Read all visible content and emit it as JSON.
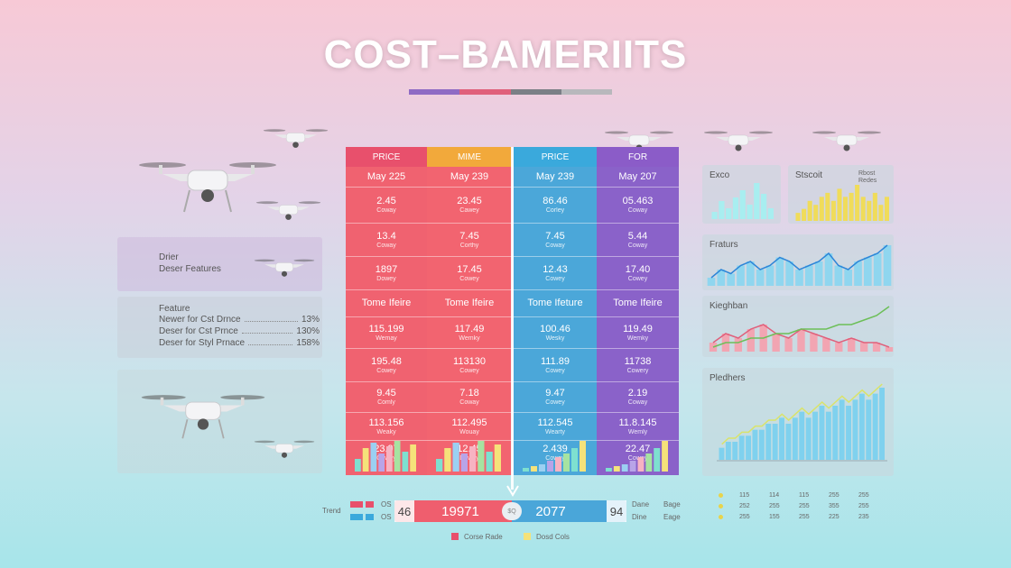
{
  "title": "COST–BAMERIITS",
  "title_bar_colors": [
    "#8f6bc4",
    "#e0607b",
    "#7b7f86",
    "#b8b8bc"
  ],
  "left_panels": {
    "p1": {
      "line1": "Drier",
      "line2": "Deser Features"
    },
    "p2": {
      "title": "Feature",
      "rows": [
        {
          "label": "Newer for Cst Drnce",
          "value": "13%"
        },
        {
          "label": "Deser for Cst Prnce",
          "value": "130%"
        },
        {
          "label": "Deser for Styl Prnace",
          "value": "158%"
        }
      ]
    }
  },
  "table": {
    "columns": [
      {
        "header": "PRICE",
        "header_color": "#e8506c",
        "body_color": "#f06270",
        "cells": [
          {
            "big": "May 225",
            "small": ""
          },
          {
            "big": "2.45",
            "small": "Coway"
          },
          {
            "big": "13.4",
            "small": "Coway"
          },
          {
            "big": "1897",
            "small": "Dowey"
          },
          {
            "big": "Tome Ifeire",
            "small": ""
          },
          {
            "big": "115.199",
            "small": "Wemay"
          },
          {
            "big": "195.48",
            "small": "Cowey"
          },
          {
            "big": "9.45",
            "small": "Comly"
          },
          {
            "big": "113.156",
            "small": "Weaky"
          },
          {
            "big": "23.97",
            "small": "Cowey"
          }
        ]
      },
      {
        "header": "MIME",
        "header_color": "#f2a93b",
        "body_color": "#f26470",
        "cells": [
          {
            "big": "May 239",
            "small": ""
          },
          {
            "big": "23.45",
            "small": "Cawey"
          },
          {
            "big": "7.45",
            "small": "Corthy"
          },
          {
            "big": "17.45",
            "small": "Cowey"
          },
          {
            "big": "Tome Ifeire",
            "small": ""
          },
          {
            "big": "117.49",
            "small": "Wemky"
          },
          {
            "big": "113130",
            "small": "Cowey"
          },
          {
            "big": "7.18",
            "small": "Coway"
          },
          {
            "big": "112.495",
            "small": "Wouay"
          },
          {
            "big": "12.45",
            "small": "Dowey"
          }
        ]
      },
      {
        "header": "PRICE",
        "header_color": "#3aa9dc",
        "body_color": "#4ba7d9",
        "cells": [
          {
            "big": "May 239",
            "small": ""
          },
          {
            "big": "86.46",
            "small": "Corley"
          },
          {
            "big": "7.45",
            "small": "Coway"
          },
          {
            "big": "12.43",
            "small": "Cowey"
          },
          {
            "big": "Tome Ifeture",
            "small": ""
          },
          {
            "big": "100.46",
            "small": "Wesky"
          },
          {
            "big": "111.89",
            "small": "Cowey"
          },
          {
            "big": "9.47",
            "small": "Cowey"
          },
          {
            "big": "112.545",
            "small": "Wearty"
          },
          {
            "big": "2.439",
            "small": "Cowey"
          }
        ]
      },
      {
        "header": "FOR",
        "header_color": "#8b5cc8",
        "body_color": "#8a62c9",
        "cells": [
          {
            "big": "May 207",
            "small": ""
          },
          {
            "big": "05.463",
            "small": "Coway"
          },
          {
            "big": "5.44",
            "small": "Coway"
          },
          {
            "big": "17.40",
            "small": "Cowey"
          },
          {
            "big": "Tome Ifeire",
            "small": ""
          },
          {
            "big": "119.49",
            "small": "Wemky"
          },
          {
            "big": "11738",
            "small": "Cowery"
          },
          {
            "big": "2.19",
            "small": "Coway"
          },
          {
            "big": "11.8.145",
            "small": "Wemly"
          },
          {
            "big": "22.47",
            "small": "Cowey"
          }
        ]
      }
    ]
  },
  "bottom_bar": {
    "label": "Trend",
    "left_codes": [
      "OS",
      "OS"
    ],
    "left_end": "46",
    "left_value": "19971",
    "center_badge": "$Q",
    "right_value": "2077",
    "right_end": "94",
    "right_text1": "Dane",
    "right_text2": "Bage",
    "right_text3": "Dine",
    "right_text4": "Eage"
  },
  "bottom_legend": {
    "item1": "Corse Rade",
    "item2": "Dosd Cols"
  },
  "right_panels": {
    "p1": {
      "title": "Exco"
    },
    "p2": {
      "title": "Stscoit",
      "note_line1": "Rbost",
      "note_line2": "Redes"
    },
    "p3": {
      "title": "Fraturs"
    },
    "p4": {
      "title": "Kieghban"
    },
    "p5": {
      "title": "Pledhers"
    }
  },
  "right_legend": {
    "rows": [
      [
        "115",
        "114",
        "115",
        "255",
        "255"
      ],
      [
        "252",
        "255",
        "255",
        "355",
        "255"
      ],
      [
        "255",
        "155",
        "255",
        "225",
        "235"
      ]
    ]
  },
  "chart_data": [
    {
      "type": "bar",
      "title": "Exco",
      "values": [
        2,
        5,
        3,
        6,
        8,
        4,
        10,
        7,
        3
      ]
    },
    {
      "type": "bar",
      "title": "Stscoit",
      "values": [
        2,
        3,
        5,
        4,
        6,
        7,
        5,
        8,
        6,
        7,
        9,
        6,
        5,
        7,
        4,
        6
      ]
    },
    {
      "type": "line",
      "title": "Fraturs",
      "values": [
        2,
        4,
        3,
        5,
        6,
        4,
        5,
        7,
        6,
        4,
        5,
        6,
        8,
        5,
        4,
        6,
        7,
        8,
        10
      ]
    },
    {
      "type": "line",
      "title": "Kieghban",
      "series": [
        {
          "values": [
            2,
            4,
            3,
            5,
            6,
            4,
            3,
            5,
            4,
            3,
            2,
            3,
            2,
            2,
            1
          ]
        },
        {
          "values": [
            1,
            2,
            2,
            3,
            3,
            4,
            4,
            5,
            5,
            5,
            6,
            6,
            7,
            8,
            10
          ]
        }
      ]
    },
    {
      "type": "bar",
      "title": "Pledhers",
      "values": [
        2,
        3,
        3,
        4,
        4,
        5,
        5,
        6,
        6,
        7,
        6,
        7,
        8,
        7,
        8,
        9,
        8,
        9,
        10,
        9,
        10,
        11,
        10,
        11,
        12
      ]
    }
  ]
}
